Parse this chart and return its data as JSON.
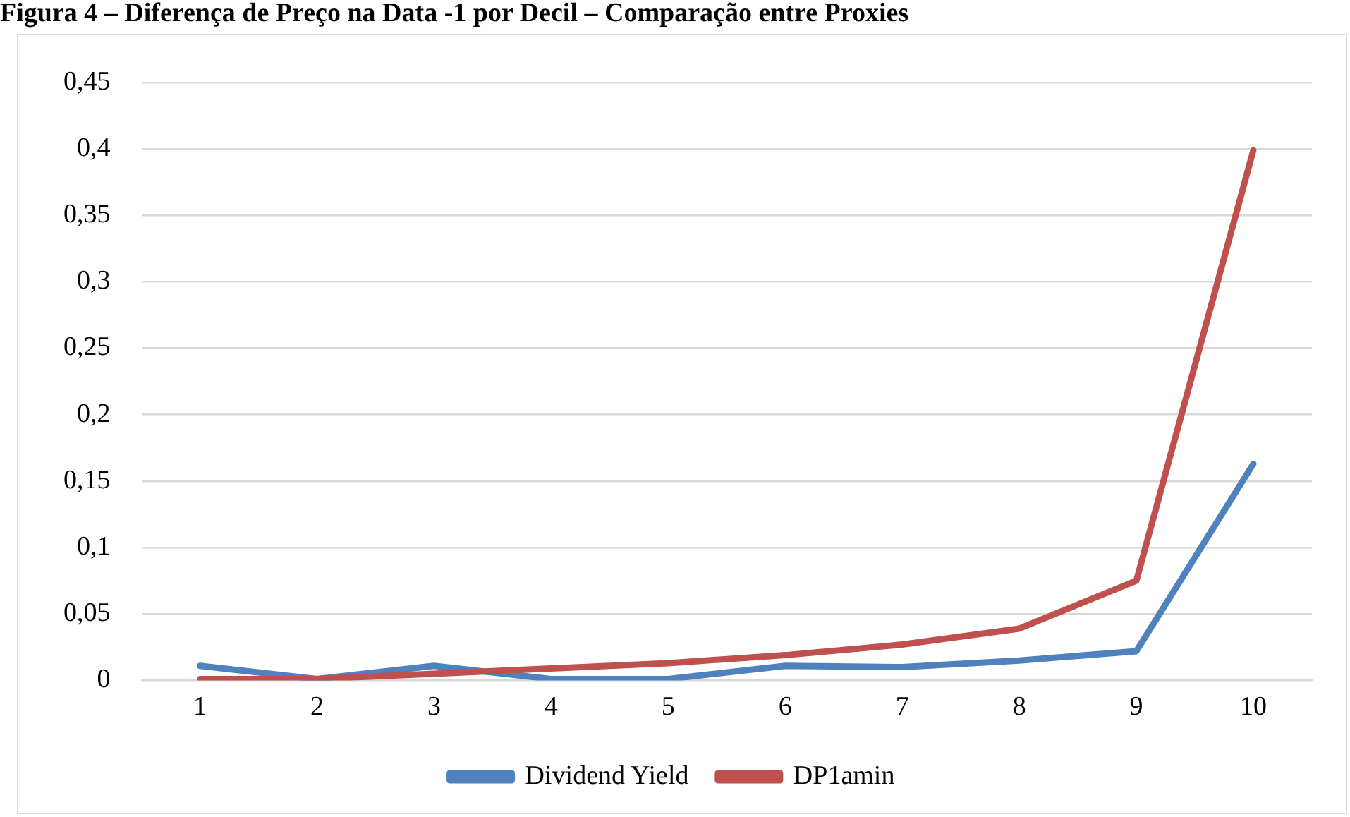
{
  "chart_data": {
    "type": "line",
    "title": "Figura 4 – Diferença de Preço na Data -1 por Decil – Comparação entre Proxies",
    "categories": [
      "1",
      "2",
      "3",
      "4",
      "5",
      "6",
      "7",
      "8",
      "9",
      "10"
    ],
    "series": [
      {
        "name": "Dividend Yield",
        "color": "#4f81bd",
        "values": [
          0.011,
          0.001,
          0.011,
          0.001,
          0.001,
          0.011,
          0.01,
          0.015,
          0.022,
          0.163
        ]
      },
      {
        "name": "DP1amin",
        "color": "#c0504d",
        "values": [
          0.001,
          0.001,
          0.005,
          0.009,
          0.013,
          0.019,
          0.027,
          0.039,
          0.075,
          0.399
        ]
      }
    ],
    "ylim": [
      0,
      0.45
    ],
    "yticks": [
      0,
      {
        "value": 0.05,
        "label": "0,05"
      },
      {
        "value": 0.1,
        "label": "0,1"
      },
      {
        "value": 0.15,
        "label": "0,15"
      },
      {
        "value": 0.2,
        "label": "0,2"
      },
      {
        "value": 0.25,
        "label": "0,25"
      },
      {
        "value": 0.3,
        "label": "0,3"
      },
      {
        "value": 0.35,
        "label": "0,35"
      },
      {
        "value": 0.4,
        "label": "0,4"
      },
      {
        "value": 0.45,
        "label": "0,45"
      }
    ],
    "grid": "y",
    "legend": "bottom",
    "marker": "none",
    "line_style": "solid"
  }
}
